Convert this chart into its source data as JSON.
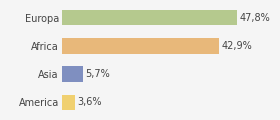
{
  "categories": [
    "Europa",
    "Africa",
    "Asia",
    "America"
  ],
  "values": [
    47.8,
    42.9,
    5.7,
    3.6
  ],
  "labels": [
    "47,8%",
    "42,9%",
    "5,7%",
    "3,6%"
  ],
  "bar_colors": [
    "#b5c98e",
    "#e8b87a",
    "#7f8fc0",
    "#f0d070"
  ],
  "background_color": "#f5f5f5",
  "xlim": [
    0,
    58
  ],
  "bar_height": 0.55,
  "label_fontsize": 7,
  "category_fontsize": 7,
  "figsize": [
    2.8,
    1.2
  ],
  "dpi": 100
}
